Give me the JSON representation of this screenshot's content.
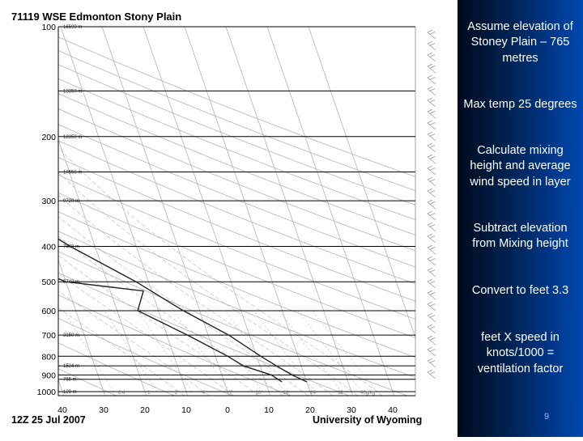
{
  "slide": {
    "title": "71119 WSE Edmonton Stony Plain",
    "date_label": "12Z 25 Jul 2007",
    "source_label": "University of Wyoming",
    "page_number": "9"
  },
  "notes": [
    "Assume elevation of Stoney Plain – 765 metres",
    "Max temp 25 degrees",
    "Calculate mixing height and average wind speed in layer",
    "Subtract elevation from Mixing height",
    "Convert to feet 3.3",
    "feet X speed in knots/1000 = ventilation factor"
  ],
  "chart_data": {
    "type": "skew-t",
    "title": "71119 WSE Edmonton Stony Plain",
    "pressure_levels": [
      {
        "label": "100",
        "p": 100
      },
      {
        "label": "200",
        "p": 200
      },
      {
        "label": "300",
        "p": 300
      },
      {
        "label": "400",
        "p": 400
      },
      {
        "label": "500",
        "p": 500
      },
      {
        "label": "600",
        "p": 600
      },
      {
        "label": "700",
        "p": 700
      },
      {
        "label": "800",
        "p": 800
      },
      {
        "label": "900",
        "p": 900
      },
      {
        "label": "1000",
        "p": 1000
      }
    ],
    "height_labels": [
      {
        "p": 100,
        "label": "16590 m"
      },
      {
        "p": 150,
        "label": "13350 m"
      },
      {
        "p": 200,
        "label": "12350 m"
      },
      {
        "p": 250,
        "label": "10550 m"
      },
      {
        "p": 300,
        "label": "9720 m"
      },
      {
        "p": 400,
        "label": "7440 m"
      },
      {
        "p": 500,
        "label": "5740 m"
      },
      {
        "p": 700,
        "label": "3150 m"
      },
      {
        "p": 850,
        "label": "1524 m"
      },
      {
        "p": 925,
        "label": "765 m"
      },
      {
        "p": 1000,
        "label": "120 m"
      }
    ],
    "temperature_ticks": [
      -40,
      -30,
      -20,
      -10,
      0,
      10,
      20,
      30,
      40
    ],
    "mixing_ratio_labels": [
      "0.4",
      "1",
      "2",
      "4",
      "7",
      "10",
      "16",
      "24",
      "32",
      "40g/kg"
    ],
    "temperature_profile": [
      {
        "p": 940,
        "t": 20
      },
      {
        "p": 900,
        "t": 17
      },
      {
        "p": 850,
        "t": 14
      },
      {
        "p": 800,
        "t": 11
      },
      {
        "p": 700,
        "t": 5
      },
      {
        "p": 600,
        "t": -4
      },
      {
        "p": 500,
        "t": -13
      },
      {
        "p": 400,
        "t": -26
      },
      {
        "p": 300,
        "t": -40
      },
      {
        "p": 250,
        "t": -50
      },
      {
        "p": 200,
        "t": -54
      },
      {
        "p": 150,
        "t": -54
      },
      {
        "p": 100,
        "t": -58
      }
    ],
    "dewpoint_profile": [
      {
        "p": 940,
        "t": 14
      },
      {
        "p": 900,
        "t": 12
      },
      {
        "p": 850,
        "t": 6
      },
      {
        "p": 800,
        "t": 3
      },
      {
        "p": 700,
        "t": -5
      },
      {
        "p": 600,
        "t": -15
      },
      {
        "p": 530,
        "t": -12
      },
      {
        "p": 500,
        "t": -30
      },
      {
        "p": 420,
        "t": -44
      },
      {
        "p": 400,
        "t": -38
      },
      {
        "p": 350,
        "t": -38
      },
      {
        "p": 300,
        "t": -55
      },
      {
        "p": 250,
        "t": -60
      },
      {
        "p": 200,
        "t": -68
      },
      {
        "p": 150,
        "t": -76
      },
      {
        "p": 100,
        "t": -80
      }
    ],
    "colors": {
      "temperature": "#222222",
      "dewpoint": "#222222",
      "grid": "#000000",
      "background_lines": "#b4b4b4"
    }
  }
}
